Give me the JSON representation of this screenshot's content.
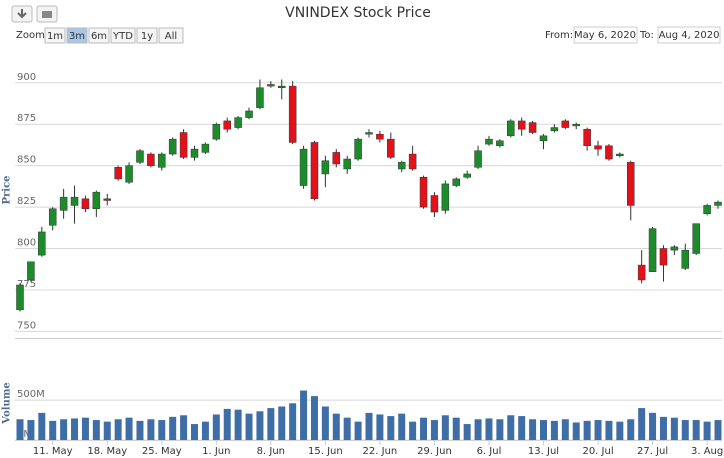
{
  "chart_data": {
    "type": "candlestick",
    "title": "VNINDEX Stock Price",
    "zoom_label": "Zoom",
    "zoom_buttons": [
      "1m",
      "3m",
      "6m",
      "YTD",
      "1y",
      "All"
    ],
    "selected_zoom": 1,
    "from_label": "From:",
    "from": "May 6, 2020",
    "to_label": "To:",
    "to": "Aug 4, 2020",
    "y_label": "Price",
    "volume_label": "Volume",
    "categories": [
      null,
      null,
      null,
      "11. May",
      null,
      null,
      null,
      null,
      "18. May",
      null,
      null,
      null,
      null,
      "25. May",
      null,
      null,
      null,
      null,
      "1. Jun",
      null,
      null,
      null,
      null,
      "8. Jun",
      null,
      null,
      null,
      null,
      "15. Jun",
      null,
      null,
      null,
      null,
      "22. Jun",
      null,
      null,
      null,
      null,
      "29. Jun",
      null,
      null,
      null,
      null,
      "6. Jul",
      null,
      null,
      null,
      null,
      "13. Jul",
      null,
      null,
      null,
      null,
      "20. Jul",
      null,
      null,
      null,
      null,
      "27. Jul",
      null,
      null,
      null,
      null,
      "3. Aug",
      null
    ],
    "open": [
      763,
      781,
      796,
      814,
      823,
      826,
      830,
      824,
      830,
      849,
      840,
      852,
      857,
      849,
      857,
      870,
      855,
      858,
      866,
      877,
      873,
      879,
      885,
      898,
      897,
      898,
      838,
      864,
      845,
      858,
      848,
      854,
      869,
      869,
      866,
      848,
      857,
      843,
      832,
      823,
      838,
      843,
      849,
      863,
      862,
      868,
      877,
      876,
      865,
      871,
      877,
      874,
      872,
      862,
      862,
      856,
      852,
      790,
      786,
      800,
      799,
      788,
      797,
      821,
      826
    ],
    "high": [
      779,
      792,
      813,
      825,
      836,
      838,
      832,
      835,
      833,
      850,
      852,
      860,
      858,
      858,
      867,
      872,
      862,
      864,
      876,
      879,
      880,
      885,
      902,
      901,
      902,
      901,
      862,
      865,
      856,
      860,
      856,
      867,
      872,
      871,
      870,
      853,
      862,
      844,
      834,
      841,
      843,
      847,
      862,
      868,
      866,
      878,
      879,
      877,
      869,
      875,
      878,
      876,
      873,
      865,
      863,
      858,
      853,
      799,
      813,
      802,
      802,
      803,
      815,
      827,
      829
    ],
    "low": [
      762,
      780,
      795,
      811,
      818,
      815,
      822,
      819,
      826,
      841,
      839,
      851,
      849,
      847,
      856,
      854,
      853,
      857,
      865,
      870,
      872,
      878,
      884,
      897,
      890,
      863,
      836,
      829,
      837,
      849,
      845,
      853,
      867,
      864,
      854,
      846,
      847,
      824,
      819,
      821,
      837,
      842,
      848,
      862,
      861,
      867,
      868,
      869,
      860,
      870,
      872,
      872,
      859,
      856,
      853,
      855,
      817,
      779,
      786,
      780,
      796,
      787,
      796,
      820,
      824
    ],
    "close": [
      778,
      792,
      810,
      824,
      831,
      831,
      824,
      834,
      829,
      842,
      850,
      859,
      850,
      857,
      866,
      855,
      860,
      863,
      875,
      872,
      879,
      883,
      897,
      899,
      898,
      864,
      860,
      830,
      853,
      851,
      854,
      866,
      870,
      866,
      855,
      852,
      848,
      825,
      822,
      839,
      842,
      845,
      859,
      866,
      865,
      877,
      872,
      870,
      868,
      873,
      873,
      875,
      862,
      860,
      854,
      857,
      826,
      781,
      812,
      790,
      801,
      799,
      815,
      826,
      828
    ],
    "volume": [
      260,
      250,
      340,
      240,
      260,
      270,
      280,
      250,
      230,
      260,
      280,
      240,
      260,
      250,
      290,
      310,
      200,
      230,
      320,
      390,
      380,
      330,
      360,
      400,
      420,
      460,
      620,
      550,
      420,
      330,
      280,
      230,
      340,
      320,
      300,
      330,
      230,
      280,
      250,
      310,
      280,
      200,
      260,
      270,
      260,
      310,
      300,
      260,
      250,
      240,
      260,
      220,
      240,
      250,
      240,
      230,
      260,
      400,
      340,
      290,
      280,
      250,
      250,
      230,
      250
    ],
    "up_color": "#1c8c2a",
    "down_color": "#e3111a",
    "volume_color": "#3f6ea6",
    "ylim": [
      746,
      921
    ],
    "yticks": [
      750,
      775,
      800,
      825,
      850,
      875,
      900
    ],
    "volume_ylim": [
      0,
      940
    ],
    "volume_yticks": [
      {
        "value": 0,
        "label": "0M"
      },
      {
        "value": 500,
        "label": "500M"
      }
    ],
    "grid": true
  }
}
